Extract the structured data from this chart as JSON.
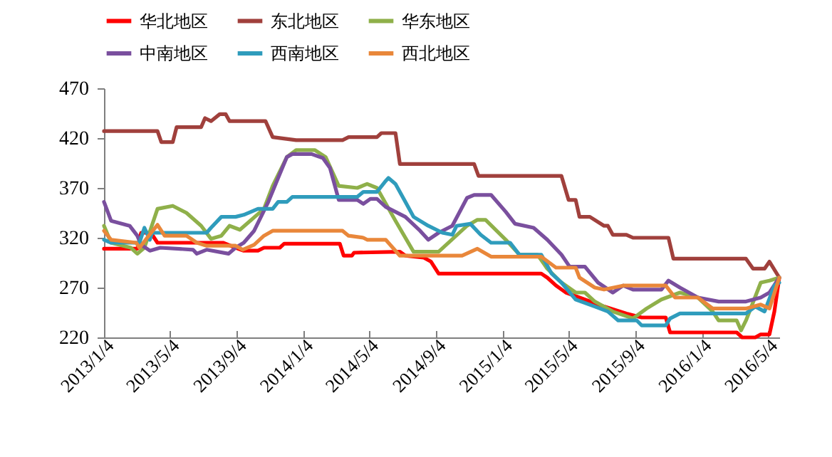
{
  "chart_data": {
    "type": "line",
    "legend": "top",
    "grid": false,
    "marker": "none",
    "line_style": "solid",
    "xlim": [
      "2013-01-04",
      "2016-05-25"
    ],
    "ylim": [
      220,
      470
    ],
    "yticks": [
      220,
      270,
      320,
      370,
      420,
      470
    ],
    "xticks": [
      {
        "value": "2013-01-04",
        "label": "2013/1/4"
      },
      {
        "value": "2013-05-04",
        "label": "2013/5/4"
      },
      {
        "value": "2013-09-04",
        "label": "2013/9/4"
      },
      {
        "value": "2014-01-04",
        "label": "2014/1/4"
      },
      {
        "value": "2014-05-04",
        "label": "2014/5/4"
      },
      {
        "value": "2014-09-04",
        "label": "2014/9/4"
      },
      {
        "value": "2015-01-04",
        "label": "2015/1/4"
      },
      {
        "value": "2015-05-04",
        "label": "2015/5/4"
      },
      {
        "value": "2015-09-04",
        "label": "2015/9/4"
      },
      {
        "value": "2016-01-04",
        "label": "2016/1/4"
      },
      {
        "value": "2016-05-04",
        "label": "2016/5/4"
      }
    ],
    "series": [
      {
        "name": "华北地区",
        "color": "#ff0000",
        "x": [
          "2013-01-04",
          "2013-03-06",
          "2013-03-13",
          "2013-03-31",
          "2013-04-12",
          "2013-08-10",
          "2013-09-02",
          "2013-09-17",
          "2013-10-13",
          "2013-10-24",
          "2013-11-22",
          "2013-11-30",
          "2014-03-12",
          "2014-03-19",
          "2014-04-03",
          "2014-04-07",
          "2014-06-30",
          "2014-07-10",
          "2014-08-13",
          "2014-08-26",
          "2014-09-09",
          "2015-03-16",
          "2015-03-27",
          "2015-04-12",
          "2015-04-30",
          "2015-05-25",
          "2015-07-09",
          "2015-08-19",
          "2015-09-16",
          "2015-10-30",
          "2015-11-07",
          "2016-03-08",
          "2016-03-18",
          "2016-04-11",
          "2016-04-21",
          "2016-05-07",
          "2016-05-16",
          "2016-05-25"
        ],
        "values": [
          309,
          309,
          325,
          325,
          315,
          315,
          310,
          307,
          307,
          310,
          310,
          314,
          314,
          302,
          302,
          305,
          306,
          302,
          300,
          296,
          284,
          284,
          280,
          272,
          265,
          260,
          251,
          244,
          240,
          240,
          225,
          225,
          220,
          220,
          223,
          223,
          246,
          280
        ]
      },
      {
        "name": "东北地区",
        "color": "#a0403c",
        "x": [
          "2013-01-04",
          "2013-04-12",
          "2013-04-19",
          "2013-05-10",
          "2013-05-17",
          "2013-07-01",
          "2013-07-08",
          "2013-07-19",
          "2013-08-04",
          "2013-08-15",
          "2013-08-22",
          "2013-10-27",
          "2013-11-09",
          "2013-12-22",
          "2014-03-17",
          "2014-03-28",
          "2014-05-19",
          "2014-05-27",
          "2014-06-22",
          "2014-06-30",
          "2014-11-13",
          "2014-11-21",
          "2015-04-22",
          "2015-05-05",
          "2015-05-18",
          "2015-05-25",
          "2015-06-13",
          "2015-07-09",
          "2015-07-16",
          "2015-07-25",
          "2015-08-19",
          "2015-08-31",
          "2015-11-04",
          "2015-11-13",
          "2016-03-25",
          "2016-04-07",
          "2016-04-28",
          "2016-05-07",
          "2016-05-25"
        ],
        "values": [
          427,
          427,
          416,
          416,
          431,
          431,
          440,
          437,
          444,
          444,
          437,
          437,
          421,
          418,
          418,
          421,
          421,
          425,
          425,
          394,
          394,
          382,
          382,
          358,
          358,
          341,
          341,
          332,
          332,
          323,
          323,
          320,
          320,
          299,
          299,
          289,
          289,
          296,
          280
        ]
      },
      {
        "name": "华东地区",
        "color": "#8fb04a",
        "x": [
          "2013-01-04",
          "2013-01-17",
          "2013-02-22",
          "2013-03-06",
          "2013-03-19",
          "2013-04-12",
          "2013-05-10",
          "2013-06-04",
          "2013-07-01",
          "2013-07-19",
          "2013-08-07",
          "2013-08-22",
          "2013-09-10",
          "2013-10-24",
          "2013-11-09",
          "2013-12-05",
          "2013-12-22",
          "2014-01-25",
          "2014-02-14",
          "2014-03-10",
          "2014-04-13",
          "2014-05-01",
          "2014-05-19",
          "2014-06-22",
          "2014-07-25",
          "2014-09-09",
          "2014-10-31",
          "2014-11-19",
          "2014-12-04",
          "2015-01-10",
          "2015-02-04",
          "2015-03-09",
          "2015-03-27",
          "2015-04-22",
          "2015-05-18",
          "2015-06-04",
          "2015-06-22",
          "2015-07-25",
          "2015-08-31",
          "2015-09-25",
          "2015-10-22",
          "2015-11-25",
          "2015-12-28",
          "2016-01-24",
          "2016-02-04",
          "2016-03-08",
          "2016-03-16",
          "2016-03-25",
          "2016-04-21",
          "2016-05-07",
          "2016-05-25"
        ],
        "values": [
          332,
          315,
          310,
          304,
          310,
          349,
          352,
          345,
          332,
          319,
          322,
          332,
          328,
          349,
          372,
          401,
          408,
          408,
          401,
          372,
          370,
          374,
          370,
          337,
          306,
          306,
          332,
          338,
          338,
          318,
          303,
          303,
          289,
          275,
          265,
          265,
          256,
          246,
          239,
          249,
          258,
          265,
          260,
          246,
          237,
          237,
          227,
          237,
          275,
          277,
          280
        ]
      },
      {
        "name": "中南地区",
        "color": "#7a4f9e",
        "x": [
          "2013-01-04",
          "2013-01-17",
          "2013-02-20",
          "2013-03-06",
          "2013-03-13",
          "2013-03-29",
          "2013-04-17",
          "2013-06-16",
          "2013-06-23",
          "2013-07-11",
          "2013-08-20",
          "2013-09-02",
          "2013-09-17",
          "2013-10-06",
          "2013-11-01",
          "2013-11-19",
          "2013-12-05",
          "2013-12-15",
          "2014-01-19",
          "2014-02-09",
          "2014-02-22",
          "2014-03-10",
          "2014-04-13",
          "2014-04-24",
          "2014-05-07",
          "2014-05-19",
          "2014-06-04",
          "2014-07-10",
          "2014-08-06",
          "2014-08-21",
          "2014-09-09",
          "2014-10-04",
          "2014-10-31",
          "2014-11-13",
          "2014-12-14",
          "2015-01-10",
          "2015-01-27",
          "2015-03-02",
          "2015-03-27",
          "2015-04-22",
          "2015-05-07",
          "2015-06-04",
          "2015-06-28",
          "2015-07-25",
          "2015-08-13",
          "2015-08-31",
          "2015-10-22",
          "2015-11-04",
          "2015-11-25",
          "2015-12-28",
          "2016-02-04",
          "2016-03-25",
          "2016-04-21",
          "2016-05-07",
          "2016-05-25"
        ],
        "values": [
          356,
          337,
          332,
          322,
          313,
          307,
          310,
          308,
          304,
          308,
          304,
          310,
          315,
          327,
          356,
          380,
          401,
          404,
          404,
          400,
          390,
          358,
          358,
          354,
          359,
          359,
          351,
          341,
          327,
          318,
          325,
          332,
          360,
          363,
          363,
          346,
          334,
          330,
          318,
          303,
          291,
          291,
          275,
          265,
          272,
          268,
          268,
          277,
          270,
          260,
          256,
          256,
          260,
          265,
          280
        ]
      },
      {
        "name": "西南地区",
        "color": "#2f9cbc",
        "x": [
          "2013-01-04",
          "2013-01-17",
          "2013-03-10",
          "2013-03-19",
          "2013-03-29",
          "2013-04-02",
          "2013-07-11",
          "2013-07-19",
          "2013-08-07",
          "2013-09-02",
          "2013-09-17",
          "2013-10-13",
          "2013-11-09",
          "2013-11-19",
          "2013-12-05",
          "2013-12-15",
          "2014-04-13",
          "2014-04-24",
          "2014-05-19",
          "2014-06-04",
          "2014-06-09",
          "2014-06-22",
          "2014-07-10",
          "2014-07-25",
          "2014-08-21",
          "2014-09-16",
          "2014-10-04",
          "2014-10-12",
          "2014-11-06",
          "2014-11-25",
          "2014-12-14",
          "2015-01-18",
          "2015-02-04",
          "2015-03-16",
          "2015-04-04",
          "2015-04-22",
          "2015-05-18",
          "2015-06-22",
          "2015-07-16",
          "2015-08-04",
          "2015-09-07",
          "2015-09-16",
          "2015-10-30",
          "2015-11-07",
          "2015-11-25",
          "2016-03-25",
          "2016-04-11",
          "2016-04-28",
          "2016-05-16",
          "2016-05-25"
        ],
        "values": [
          318,
          315,
          315,
          330,
          318,
          325,
          325,
          330,
          341,
          341,
          343,
          349,
          349,
          356,
          356,
          361,
          361,
          366,
          366,
          377,
          380,
          374,
          356,
          341,
          332,
          325,
          323,
          332,
          334,
          323,
          315,
          315,
          303,
          303,
          284,
          275,
          258,
          251,
          246,
          237,
          237,
          232,
          232,
          239,
          244,
          244,
          251,
          246,
          272,
          275
        ]
      },
      {
        "name": "西北地区",
        "color": "#e9873a",
        "x": [
          "2013-01-04",
          "2013-01-17",
          "2013-03-04",
          "2013-03-10",
          "2013-03-24",
          "2013-04-12",
          "2013-04-25",
          "2013-06-04",
          "2013-06-23",
          "2013-07-11",
          "2013-09-02",
          "2013-09-15",
          "2013-10-06",
          "2013-10-24",
          "2013-11-09",
          "2014-03-17",
          "2014-03-28",
          "2014-04-24",
          "2014-05-01",
          "2014-06-04",
          "2014-06-30",
          "2014-10-22",
          "2014-11-19",
          "2014-12-14",
          "2015-03-16",
          "2015-04-12",
          "2015-05-18",
          "2015-05-25",
          "2015-06-22",
          "2015-07-09",
          "2015-08-13",
          "2015-10-30",
          "2015-11-16",
          "2015-12-28",
          "2016-01-24",
          "2016-03-25",
          "2016-04-21",
          "2016-05-07",
          "2016-05-25"
        ],
        "values": [
          327,
          318,
          315,
          310,
          320,
          333,
          322,
          322,
          315,
          312,
          312,
          308,
          313,
          322,
          327,
          327,
          322,
          320,
          318,
          318,
          302,
          302,
          309,
          301,
          301,
          290,
          290,
          280,
          270,
          268,
          272,
          272,
          260,
          260,
          249,
          249,
          253,
          249,
          280
        ]
      }
    ]
  }
}
